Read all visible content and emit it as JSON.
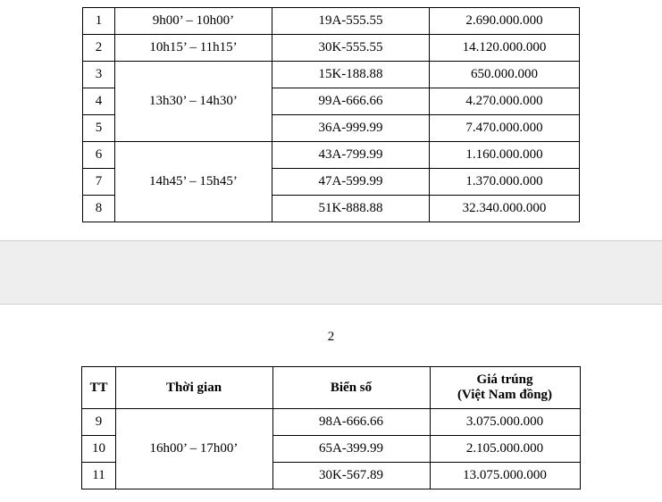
{
  "page_number": "2",
  "headers": {
    "tt": "TT",
    "time": "Thời gian",
    "plate": "Biển số",
    "price_line1": "Giá trúng",
    "price_line2": "(Việt Nam đồng)"
  },
  "table1": {
    "rows": [
      {
        "tt": "1",
        "time": "9h00’ – 10h00’",
        "plate": "19A-555.55",
        "price": "2.690.000.000"
      },
      {
        "tt": "2",
        "time": "10h15’ – 11h15’",
        "plate": "30K-555.55",
        "price": "14.120.000.000"
      },
      {
        "tt": "3",
        "time": "",
        "plate": "15K-188.88",
        "price": "650.000.000"
      },
      {
        "tt": "4",
        "time": "13h30’ – 14h30’",
        "plate": "99A-666.66",
        "price": "4.270.000.000"
      },
      {
        "tt": "5",
        "time": "",
        "plate": "36A-999.99",
        "price": "7.470.000.000"
      },
      {
        "tt": "6",
        "time": "",
        "plate": "43A-799.99",
        "price": "1.160.000.000"
      },
      {
        "tt": "7",
        "time": "14h45’ – 15h45’",
        "plate": "47A-599.99",
        "price": "1.370.000.000"
      },
      {
        "tt": "8",
        "time": "",
        "plate": "51K-888.88",
        "price": "32.340.000.000"
      }
    ],
    "time_group_a": "13h30’ – 14h30’",
    "time_group_b": "14h45’ – 15h45’"
  },
  "table2": {
    "rows": [
      {
        "tt": "9",
        "time": "",
        "plate": "98A-666.66",
        "price": "3.075.000.000"
      },
      {
        "tt": "10",
        "time": "16h00’ – 17h00’",
        "plate": "65A-399.99",
        "price": "2.105.000.000"
      },
      {
        "tt": "11",
        "time": "",
        "plate": "30K-567.89",
        "price": "13.075.000.000"
      }
    ],
    "time_group": "16h00’ – 17h00’"
  }
}
